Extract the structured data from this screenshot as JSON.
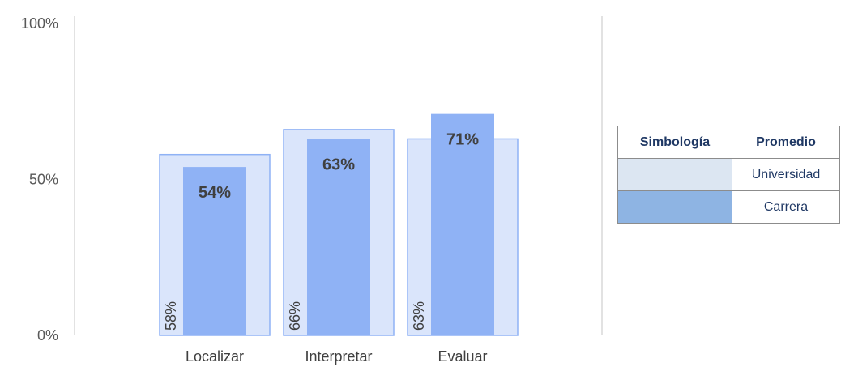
{
  "chart_data": {
    "type": "bar",
    "categories": [
      "Localizar",
      "Interpretar",
      "Evaluar"
    ],
    "series": [
      {
        "name": "Universidad",
        "values": [
          58,
          66,
          63
        ],
        "labels": [
          "58%",
          "66%",
          "63%"
        ]
      },
      {
        "name": "Carrera",
        "values": [
          54,
          63,
          71
        ],
        "labels": [
          "54%",
          "63%",
          "71%"
        ]
      }
    ],
    "ylim": [
      0,
      100
    ],
    "y_ticks": [
      "0%",
      "50%",
      "100%"
    ],
    "y_tick_values": [
      0,
      50,
      100
    ],
    "grid": false,
    "colors": {
      "universidad_fill": "#dae5fb",
      "universidad_stroke": "#8fb2f5",
      "carrera_fill": "#8fb2f5",
      "axis": "#d9d9d9"
    }
  },
  "legend": {
    "headers": [
      "Simbología",
      "Promedio"
    ],
    "rows": [
      {
        "color": "#dce6f2",
        "label": "Universidad"
      },
      {
        "color": "#8eb4e3",
        "label": "Carrera"
      }
    ]
  }
}
